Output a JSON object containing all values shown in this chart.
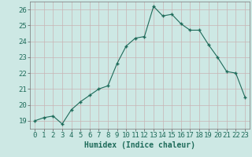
{
  "x": [
    0,
    1,
    2,
    3,
    4,
    5,
    6,
    7,
    8,
    9,
    10,
    11,
    12,
    13,
    14,
    15,
    16,
    17,
    18,
    19,
    20,
    21,
    22,
    23
  ],
  "y": [
    19.0,
    19.2,
    19.3,
    18.8,
    19.7,
    20.2,
    20.6,
    21.0,
    21.2,
    22.6,
    23.7,
    24.2,
    24.3,
    26.2,
    25.6,
    25.7,
    25.1,
    24.7,
    24.7,
    23.8,
    23.0,
    22.1,
    22.0,
    20.5
  ],
  "xlabel": "Humidex (Indice chaleur)",
  "ylim": [
    18.5,
    26.5
  ],
  "xlim": [
    -0.5,
    23.5
  ],
  "bg_color": "#cde8e4",
  "grid_color": "#c8b4b4",
  "line_color": "#1e6b5a",
  "marker_color": "#1e6b5a",
  "xlabel_fontsize": 7,
  "tick_fontsize": 6.5,
  "yticks": [
    19,
    20,
    21,
    22,
    23,
    24,
    25,
    26
  ],
  "xticks": [
    0,
    1,
    2,
    3,
    4,
    5,
    6,
    7,
    8,
    9,
    10,
    11,
    12,
    13,
    14,
    15,
    16,
    17,
    18,
    19,
    20,
    21,
    22,
    23
  ]
}
